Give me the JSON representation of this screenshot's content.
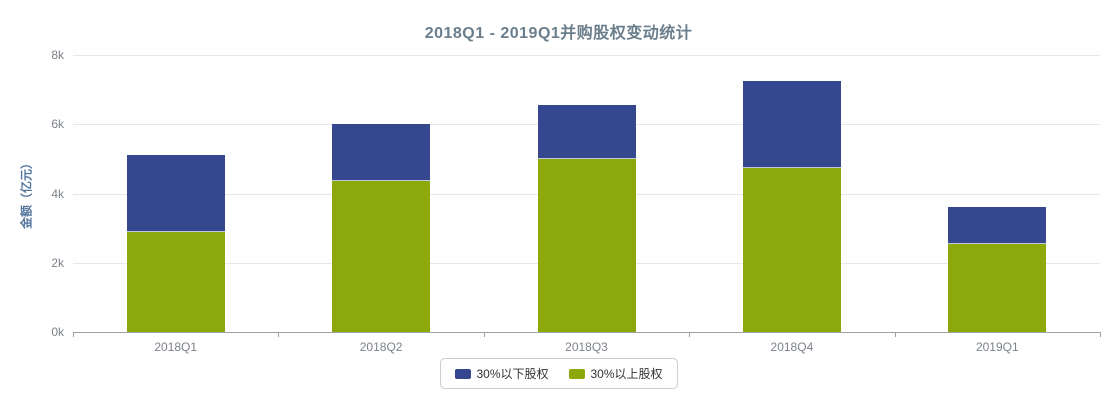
{
  "chart_data": {
    "type": "bar",
    "stacked": true,
    "title": "2018Q1 - 2019Q1并购股权变动统计",
    "ylabel": "金额（亿元）",
    "categories": [
      "2018Q1",
      "2018Q2",
      "2018Q3",
      "2018Q4",
      "2019Q1"
    ],
    "series": [
      {
        "name": "30%以下股权",
        "color": "#35478E",
        "values": [
          2200,
          1650,
          1550,
          2500,
          1050
        ]
      },
      {
        "name": "30%以上股权",
        "color": "#8CA80B",
        "values": [
          2900,
          4350,
          5000,
          4750,
          2550
        ]
      }
    ],
    "stack_totals": [
      5100,
      6000,
      6550,
      7250,
      3600
    ],
    "ylim": [
      0,
      8000
    ],
    "ytick_values": [
      0,
      2000,
      4000,
      6000,
      8000
    ],
    "ytick_labels": [
      "0k",
      "2k",
      "4k",
      "6k",
      "8k"
    ],
    "legend_position": "bottom",
    "grid": true
  }
}
